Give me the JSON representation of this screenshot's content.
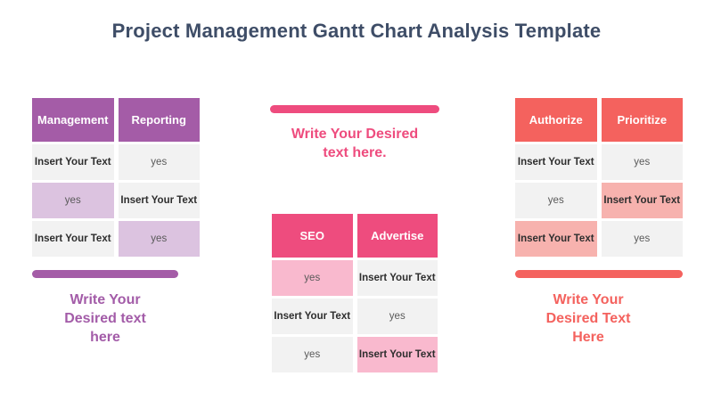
{
  "title": "Project Management Gantt Chart Analysis Template",
  "colors": {
    "title_text": "#3E4D67",
    "purple": "#A45CA7",
    "purple_light": "#DCC3E0",
    "pink": "#EE4C7E",
    "pink_light": "#F9B9CE",
    "coral": "#F4625E",
    "coral_light": "#F7B2AE",
    "cell_gray": "#F2F2F2",
    "header_text": "#FFFFFF",
    "cell_text": "#595959"
  },
  "panels": [
    {
      "name": "management-reporting",
      "accent": "#A45CA7",
      "caption": [
        "Write Your",
        "Desired text",
        "here"
      ],
      "table": {
        "headers": [
          "Management",
          "Reporting"
        ],
        "rows": [
          [
            {
              "text": "Insert Your Text",
              "highlight": false
            },
            {
              "text": "yes",
              "highlight": false
            }
          ],
          [
            {
              "text": "yes",
              "highlight": true
            },
            {
              "text": "Insert Your Text",
              "highlight": false
            }
          ],
          [
            {
              "text": "Insert Your Text",
              "highlight": false
            },
            {
              "text": "yes",
              "highlight": true
            }
          ]
        ]
      }
    },
    {
      "name": "seo-advertise",
      "accent": "#EE4C7E",
      "caption": [
        "Write Your Desired",
        "text here."
      ],
      "table": {
        "headers": [
          "SEO",
          "Advertise"
        ],
        "rows": [
          [
            {
              "text": "yes",
              "highlight": true
            },
            {
              "text": "Insert Your Text",
              "highlight": false
            }
          ],
          [
            {
              "text": "Insert Your Text",
              "highlight": false
            },
            {
              "text": "yes",
              "highlight": false
            }
          ],
          [
            {
              "text": "yes",
              "highlight": false
            },
            {
              "text": "Insert Your Text",
              "highlight": true
            }
          ]
        ]
      }
    },
    {
      "name": "authorize-prioritize",
      "accent": "#F4625E",
      "caption": [
        "Write Your",
        "Desired Text",
        "Here"
      ],
      "table": {
        "headers": [
          "Authorize",
          "Prioritize"
        ],
        "rows": [
          [
            {
              "text": "Insert Your Text",
              "highlight": false
            },
            {
              "text": "yes",
              "highlight": false
            }
          ],
          [
            {
              "text": "yes",
              "highlight": false
            },
            {
              "text": "Insert Your Text",
              "highlight": true
            }
          ],
          [
            {
              "text": "Insert Your Text",
              "highlight": true
            },
            {
              "text": "yes",
              "highlight": false
            }
          ]
        ]
      }
    }
  ]
}
